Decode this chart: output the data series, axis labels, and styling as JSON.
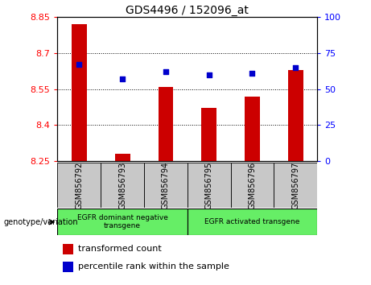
{
  "title": "GDS4496 / 152096_at",
  "samples": [
    "GSM856792",
    "GSM856793",
    "GSM856794",
    "GSM856795",
    "GSM856796",
    "GSM856797"
  ],
  "transformed_count": [
    8.82,
    8.28,
    8.56,
    8.47,
    8.52,
    8.63
  ],
  "percentile_rank": [
    67,
    57,
    62,
    60,
    61,
    65
  ],
  "ylim_left": [
    8.25,
    8.85
  ],
  "ylim_right": [
    0,
    100
  ],
  "yticks_left": [
    8.25,
    8.4,
    8.55,
    8.7,
    8.85
  ],
  "yticks_right": [
    0,
    25,
    50,
    75,
    100
  ],
  "bar_color": "#cc0000",
  "dot_color": "#0000cc",
  "bar_width": 0.35,
  "group1_label": "EGFR dominant negative\ntransgene",
  "group2_label": "EGFR activated transgene",
  "group1_count": 3,
  "group2_count": 3,
  "group_color": "#66ee66",
  "sample_cell_color": "#c8c8c8",
  "genotype_label": "genotype/variation",
  "legend_bar_label": "transformed count",
  "legend_dot_label": "percentile rank within the sample",
  "grid_lines": [
    8.4,
    8.55,
    8.7
  ],
  "plot_bg": "#ffffff",
  "title_fontsize": 10,
  "axis_fontsize": 8,
  "sample_fontsize": 7,
  "legend_fontsize": 8
}
